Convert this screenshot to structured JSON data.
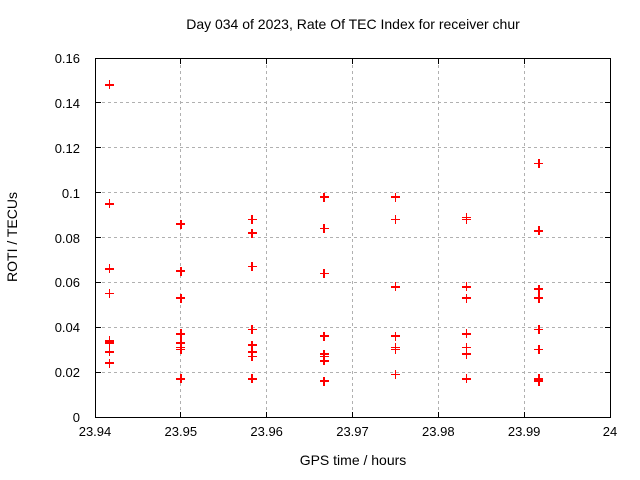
{
  "chart_data": {
    "type": "scatter",
    "title": "Day 034 of 2023, Rate Of TEC Index for receiver chur",
    "xlabel": "GPS time / hours",
    "ylabel": "ROTI / TECUs",
    "xlim": [
      23.94,
      24
    ],
    "ylim": [
      0,
      0.16
    ],
    "xticks": [
      23.94,
      23.95,
      23.96,
      23.97,
      23.98,
      23.99,
      24
    ],
    "xtick_labels": [
      "23.94",
      "23.95",
      "23.96",
      "23.97",
      "23.98",
      "23.99",
      "24"
    ],
    "yticks": [
      0,
      0.02,
      0.04,
      0.06,
      0.08,
      0.1,
      0.12,
      0.14,
      0.16
    ],
    "ytick_labels": [
      "0",
      "0.02",
      "0.04",
      "0.06",
      "0.08",
      "0.1",
      "0.12",
      "0.14",
      "0.16"
    ],
    "grid": true,
    "grid_style": "dashed",
    "legend": "none",
    "marker": {
      "glyph": "plus",
      "color": "#ff0000"
    },
    "series": [
      {
        "name": "ROTI",
        "points": [
          [
            23.9417,
            0.148
          ],
          [
            23.9417,
            0.095
          ],
          [
            23.9417,
            0.066
          ],
          [
            23.9417,
            0.055
          ],
          [
            23.9417,
            0.034
          ],
          [
            23.9417,
            0.033
          ],
          [
            23.9417,
            0.029
          ],
          [
            23.9417,
            0.024
          ],
          [
            23.95,
            0.086
          ],
          [
            23.95,
            0.065
          ],
          [
            23.95,
            0.053
          ],
          [
            23.95,
            0.037
          ],
          [
            23.95,
            0.033
          ],
          [
            23.95,
            0.031
          ],
          [
            23.95,
            0.03
          ],
          [
            23.95,
            0.017
          ],
          [
            23.9583,
            0.088
          ],
          [
            23.9583,
            0.082
          ],
          [
            23.9583,
            0.067
          ],
          [
            23.9583,
            0.039
          ],
          [
            23.9583,
            0.032
          ],
          [
            23.9583,
            0.029
          ],
          [
            23.9583,
            0.027
          ],
          [
            23.9583,
            0.017
          ],
          [
            23.9667,
            0.098
          ],
          [
            23.9667,
            0.084
          ],
          [
            23.9667,
            0.064
          ],
          [
            23.9667,
            0.036
          ],
          [
            23.9667,
            0.028
          ],
          [
            23.9667,
            0.027
          ],
          [
            23.9667,
            0.025
          ],
          [
            23.9667,
            0.016
          ],
          [
            23.975,
            0.098
          ],
          [
            23.975,
            0.088
          ],
          [
            23.975,
            0.058
          ],
          [
            23.975,
            0.036
          ],
          [
            23.975,
            0.031
          ],
          [
            23.975,
            0.03
          ],
          [
            23.975,
            0.019
          ],
          [
            23.9833,
            0.089
          ],
          [
            23.9833,
            0.088
          ],
          [
            23.9833,
            0.058
          ],
          [
            23.9833,
            0.053
          ],
          [
            23.9833,
            0.037
          ],
          [
            23.9833,
            0.031
          ],
          [
            23.9833,
            0.028
          ],
          [
            23.9833,
            0.017
          ],
          [
            23.9917,
            0.113
          ],
          [
            23.9917,
            0.083
          ],
          [
            23.9917,
            0.057
          ],
          [
            23.9917,
            0.053
          ],
          [
            23.9917,
            0.039
          ],
          [
            23.9917,
            0.03
          ],
          [
            23.9917,
            0.017
          ],
          [
            23.9917,
            0.016
          ]
        ]
      }
    ]
  },
  "colors": {
    "marker": "#ff0000",
    "grid": "#b0b0b0",
    "axis": "#000000",
    "background": "#ffffff"
  }
}
